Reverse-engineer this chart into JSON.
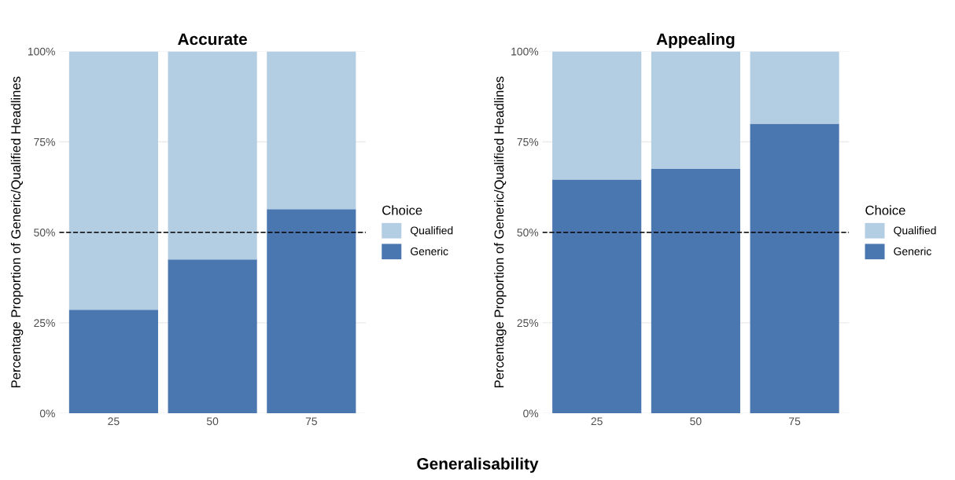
{
  "chart_data": [
    {
      "type": "bar",
      "title": "Accurate",
      "xlabel": "Generalisability",
      "ylabel": "Percentage Proportion of Generic/Qualified Headlines",
      "legend_title": "Choice",
      "categories": [
        "25",
        "50",
        "75"
      ],
      "stacked": true,
      "series": [
        {
          "name": "Generic",
          "color": "#4a77b0",
          "values": [
            28.6,
            42.5,
            56.4
          ]
        },
        {
          "name": "Qualified",
          "color": "#b3cde2",
          "values": [
            71.4,
            57.5,
            43.6
          ]
        }
      ],
      "ylim": [
        0,
        100
      ],
      "yticks": [
        {
          "value": 0,
          "label": "0%"
        },
        {
          "value": 25,
          "label": "25%"
        },
        {
          "value": 50,
          "label": "50%"
        },
        {
          "value": 75,
          "label": "75%"
        },
        {
          "value": 100,
          "label": "100%"
        }
      ],
      "ref_lines": [
        {
          "axis": "y",
          "value": 50,
          "color": "#000000",
          "line_style": "dashed"
        }
      ],
      "grid": true,
      "legend": "right"
    },
    {
      "type": "bar",
      "title": "Appealing",
      "ylabel": "Percentage Proportion of Generic/Qualified Headlines",
      "legend_title": "Choice",
      "categories": [
        "25",
        "50",
        "75"
      ],
      "stacked": true,
      "series": [
        {
          "name": "Generic",
          "color": "#4a77b0",
          "values": [
            64.6,
            67.5,
            80.0
          ]
        },
        {
          "name": "Qualified",
          "color": "#b3cde2",
          "values": [
            35.4,
            32.5,
            20.0
          ]
        }
      ],
      "ylim": [
        0,
        100
      ],
      "yticks": [
        {
          "value": 0,
          "label": "0%"
        },
        {
          "value": 25,
          "label": "25%"
        },
        {
          "value": 50,
          "label": "50%"
        },
        {
          "value": 75,
          "label": "75%"
        },
        {
          "value": 100,
          "label": "100%"
        }
      ],
      "ref_lines": [
        {
          "axis": "y",
          "value": 50,
          "color": "#000000",
          "line_style": "dashed"
        }
      ],
      "grid": true,
      "legend": "right"
    }
  ]
}
